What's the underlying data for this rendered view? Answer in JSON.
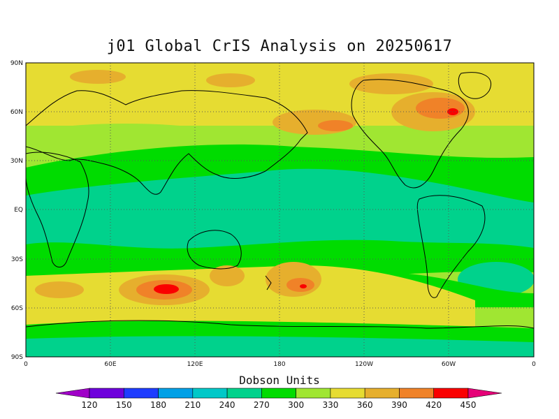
{
  "title": "j01 Global CrIS Analysis on 20250617",
  "latitude_labels": [
    "90N",
    "60N",
    "30N",
    "EQ",
    "30S",
    "60S",
    "90S"
  ],
  "longitude_labels": [
    "0",
    "60E",
    "120E",
    "180",
    "120W",
    "60W",
    "0"
  ],
  "colorbar": {
    "title": "Dobson Units",
    "ticks": [
      "120",
      "150",
      "180",
      "210",
      "240",
      "270",
      "300",
      "330",
      "360",
      "390",
      "420",
      "450"
    ],
    "colors": [
      "#a000c8",
      "#6e00dc",
      "#1e3cff",
      "#00a0e6",
      "#00c8c8",
      "#00d28c",
      "#00dc00",
      "#a0e632",
      "#e6dc32",
      "#e6af2d",
      "#f08228",
      "#fa0000",
      "#e60078"
    ]
  },
  "map_colors": {
    "c270": "#00d28c",
    "c300": "#00dc00",
    "c330": "#a0e632",
    "c360": "#e6dc32",
    "c390": "#e6af2d",
    "c420": "#f08228",
    "c450": "#fa0000"
  }
}
